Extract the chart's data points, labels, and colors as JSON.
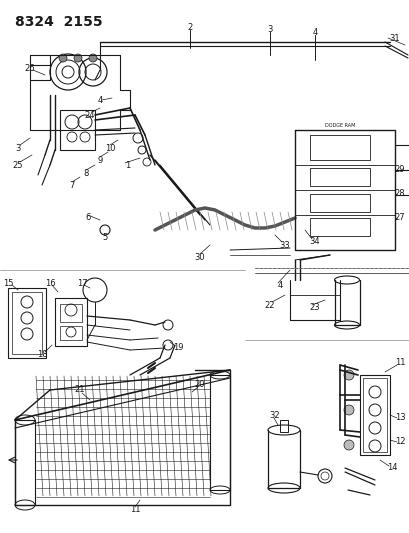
{
  "title": "8324  2155",
  "bg_color": "#ffffff",
  "line_color": "#1a1a1a",
  "text_color": "#1a1a1a",
  "title_fontsize": 10,
  "label_fontsize": 6.0,
  "fig_width": 4.1,
  "fig_height": 5.33,
  "dpi": 100
}
